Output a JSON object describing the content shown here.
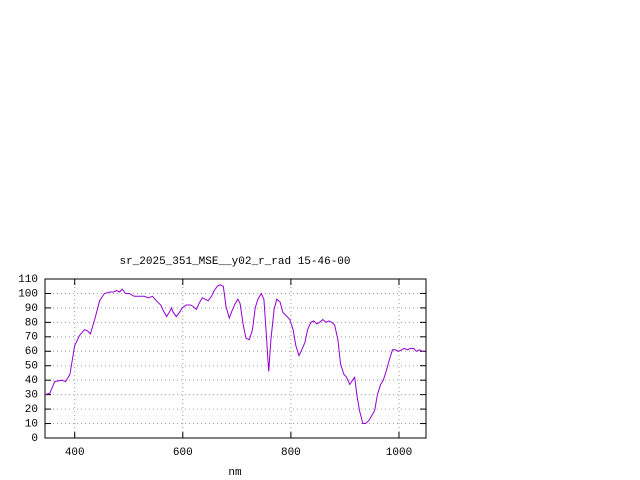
{
  "chart_data": {
    "type": "line",
    "title": "sr_2025_351_MSE__y02_r_rad 15-46-00",
    "x_label": "nm",
    "xlim": [
      345,
      1050
    ],
    "xticks": [
      400,
      600,
      800,
      1000
    ],
    "ylim": [
      0,
      110
    ],
    "yticks": [
      0,
      10,
      20,
      30,
      40,
      50,
      60,
      70,
      80,
      90,
      100,
      110
    ],
    "grid": true,
    "series": [
      {
        "color": "#9400d3",
        "x": [
          345,
          354,
          363,
          376,
          383,
          391,
          400,
          409,
          418,
          424,
          429,
          437,
          446,
          455,
          465,
          472,
          477,
          483,
          488,
          494,
          501,
          510,
          520,
          529,
          536,
          544,
          551,
          559,
          564,
          570,
          575,
          579,
          582,
          588,
          594,
          599,
          606,
          614,
          619,
          625,
          630,
          636,
          641,
          647,
          653,
          658,
          664,
          669,
          675,
          680,
          686,
          691,
          697,
          702,
          706,
          712,
          717,
          723,
          729,
          734,
          739,
          745,
          750,
          754,
          759,
          763,
          769,
          774,
          780,
          785,
          793,
          798,
          804,
          809,
          815,
          820,
          826,
          831,
          837,
          842,
          848,
          853,
          859,
          865,
          870,
          876,
          881,
          887,
          892,
          898,
          903,
          909,
          914,
          918,
          922,
          927,
          933,
          938,
          944,
          949,
          955,
          960,
          966,
          971,
          977,
          982,
          988,
          993,
          999,
          1005,
          1010,
          1016,
          1021,
          1027,
          1032,
          1038,
          1043,
          1047
        ],
        "values": [
          30,
          31,
          39,
          40,
          39,
          44,
          64,
          71,
          75,
          74,
          72,
          82,
          95,
          100,
          101,
          101,
          102,
          101,
          103,
          100,
          100,
          98,
          98,
          98,
          97,
          98,
          95,
          92,
          88,
          84,
          87,
          90,
          87,
          84,
          87,
          90,
          92,
          92,
          91,
          89,
          93,
          97,
          96,
          95,
          98,
          102,
          105,
          106,
          105,
          91,
          83,
          88,
          93,
          96,
          93,
          78,
          69,
          68,
          75,
          90,
          96,
          100,
          96,
          75,
          46,
          68,
          89,
          96,
          94,
          87,
          84,
          82,
          75,
          64,
          57,
          61,
          66,
          75,
          80,
          81,
          79,
          80,
          82,
          80,
          81,
          80,
          78,
          68,
          51,
          44,
          42,
          37,
          40,
          42,
          30,
          19,
          10,
          10,
          12,
          15,
          19,
          30,
          37,
          40,
          47,
          54,
          61,
          61,
          60,
          61,
          62,
          61,
          62,
          62,
          60,
          61,
          60,
          60
        ]
      }
    ]
  }
}
